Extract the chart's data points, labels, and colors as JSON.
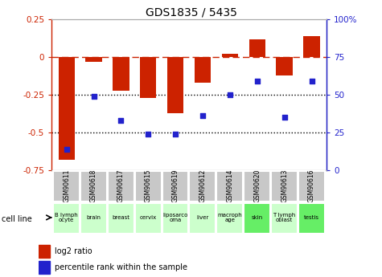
{
  "title": "GDS1835 / 5435",
  "samples": [
    "GSM90611",
    "GSM90618",
    "GSM90617",
    "GSM90615",
    "GSM90619",
    "GSM90612",
    "GSM90614",
    "GSM90620",
    "GSM90613",
    "GSM90616"
  ],
  "cell_lines": [
    "B lymph\nocyte",
    "brain",
    "breast",
    "cervix",
    "liposarco\noma",
    "liver",
    "macroph\nage",
    "skin",
    "T lymph\noblast",
    "testis"
  ],
  "cell_colors": [
    "#ccffcc",
    "#ccffcc",
    "#ccffcc",
    "#ccffcc",
    "#ccffcc",
    "#ccffcc",
    "#ccffcc",
    "#66ee66",
    "#ccffcc",
    "#66ee66"
  ],
  "log2_ratio": [
    -0.68,
    -0.03,
    -0.22,
    -0.27,
    -0.37,
    -0.17,
    0.02,
    0.12,
    -0.12,
    0.14
  ],
  "percentile_rank": [
    14,
    49,
    33,
    24,
    24,
    36,
    50,
    59,
    35,
    59
  ],
  "ylim_left": [
    -0.75,
    0.25
  ],
  "bar_color": "#cc2200",
  "dot_color": "#2222cc",
  "sample_bg": "#c8c8c8"
}
